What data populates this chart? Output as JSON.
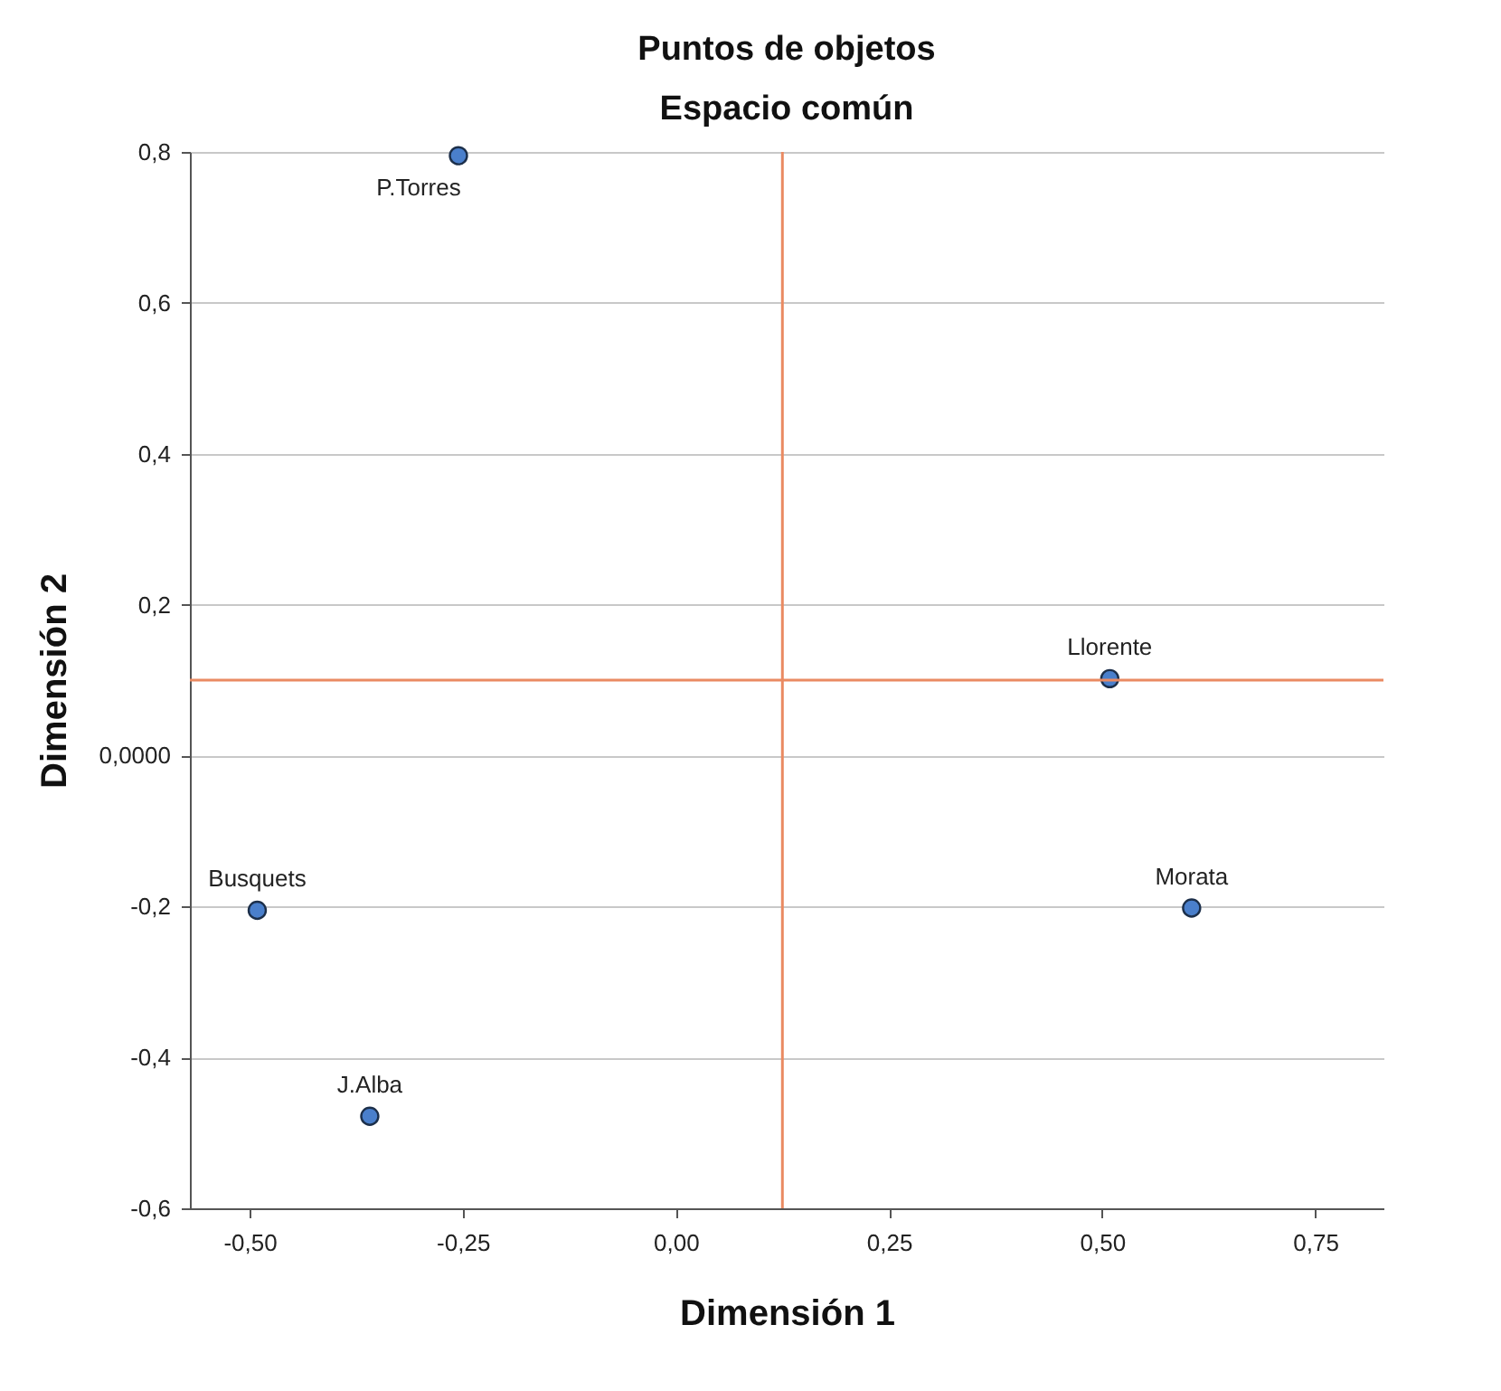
{
  "chart_data": {
    "type": "scatter",
    "title": "Puntos de objetos",
    "subtitle": "Espacio común",
    "xlabel": "Dimensión 1",
    "ylabel": "Dimensión 2",
    "x": [
      -0.255,
      0.509,
      -0.491,
      0.605,
      -0.359
    ],
    "series": [
      {
        "color": "#4a7fcb",
        "values": [
          0.795,
          0.102,
          -0.205,
          -0.202,
          -0.478
        ]
      }
    ],
    "annotations": [
      {
        "text": "P.Torres",
        "x": -0.255,
        "y": 0.795
      },
      {
        "text": "Llorente",
        "x": 0.509,
        "y": 0.102
      },
      {
        "text": "Busquets",
        "x": -0.491,
        "y": -0.205
      },
      {
        "text": "Morata",
        "x": 0.605,
        "y": -0.202
      },
      {
        "text": "J.Alba",
        "x": -0.359,
        "y": -0.478
      }
    ],
    "ref_lines": [
      {
        "axis": "x",
        "value": 0.125,
        "color": "#ea8a62"
      },
      {
        "axis": "y",
        "value": 0.1,
        "color": "#ea8a62"
      }
    ],
    "xlim": [
      -0.57,
      0.83
    ],
    "ylim": [
      -0.6,
      0.8
    ],
    "xticks": [
      {
        "value": -0.5,
        "label": "-0,50"
      },
      {
        "value": -0.25,
        "label": "-0,25"
      },
      {
        "value": 0,
        "label": "0,00"
      },
      {
        "value": 0.25,
        "label": "0,25"
      },
      {
        "value": 0.5,
        "label": "0,50"
      },
      {
        "value": 0.75,
        "label": "0,75"
      }
    ],
    "yticks": [
      {
        "value": -0.6,
        "label": "-0,6"
      },
      {
        "value": -0.4,
        "label": "-0,4"
      },
      {
        "value": -0.2,
        "label": "-0,2"
      },
      {
        "value": 0,
        "label": "0,0000"
      },
      {
        "value": 0.2,
        "label": "0,2"
      },
      {
        "value": 0.4,
        "label": "0,4"
      },
      {
        "value": 0.6,
        "label": "0,6"
      },
      {
        "value": 0.8,
        "label": "0,8"
      }
    ],
    "grid": "y",
    "marker": "circle"
  }
}
